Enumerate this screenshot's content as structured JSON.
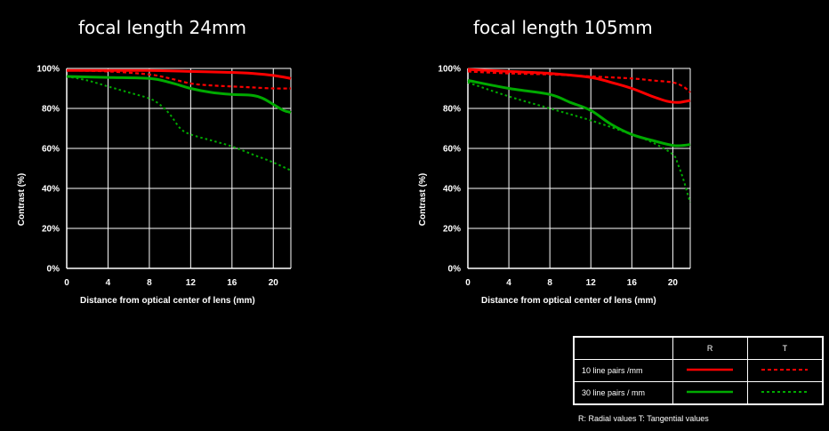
{
  "chart_data": [
    {
      "type": "line",
      "title": "focal length 24mm",
      "xlabel": "Distance from optical center of lens (mm)",
      "ylabel": "Contrast  (%)",
      "xlim": [
        0,
        21.7
      ],
      "ylim": [
        0,
        100
      ],
      "xticks": [
        "0",
        "4",
        "8",
        "12",
        "16",
        "20"
      ],
      "xtick_values": [
        0,
        4,
        8,
        12,
        16,
        20
      ],
      "yticks": [
        "0%",
        "20%",
        "40%",
        "60%",
        "80%",
        "100%"
      ],
      "ytick_values": [
        0,
        20,
        40,
        60,
        80,
        100
      ],
      "grid": true,
      "series": [
        {
          "key": "10R",
          "color": "#ff0000",
          "style": "solid",
          "x": [
            0,
            4,
            8,
            12,
            16,
            18,
            20,
            21.7
          ],
          "y": [
            99,
            99,
            99,
            98.5,
            98,
            97.5,
            96.5,
            95
          ]
        },
        {
          "key": "10T",
          "color": "#ff0000",
          "style": "dashed",
          "x": [
            0,
            4,
            8,
            10,
            12,
            14,
            16,
            18,
            20,
            21.7
          ],
          "y": [
            99,
            98.5,
            97,
            95,
            92.5,
            91.5,
            91,
            90.5,
            90,
            90
          ]
        },
        {
          "key": "30R",
          "color": "#00aa00",
          "style": "solid",
          "x": [
            0,
            4,
            8,
            10,
            12,
            14,
            16,
            18,
            19,
            20,
            21,
            21.7
          ],
          "y": [
            96,
            95.5,
            95,
            93,
            90,
            88,
            87,
            86.5,
            85,
            82,
            79,
            78
          ]
        },
        {
          "key": "30T",
          "color": "#00aa00",
          "style": "dotted",
          "x": [
            0,
            2,
            4,
            6,
            8,
            9,
            10,
            11,
            12,
            14,
            16,
            18,
            20,
            21.7
          ],
          "y": [
            96,
            94,
            91,
            88,
            85,
            82,
            77,
            70,
            67,
            64,
            61,
            57,
            53,
            49
          ]
        }
      ]
    },
    {
      "type": "line",
      "title": "focal length 105mm",
      "xlabel": "Distance from optical center of lens (mm)",
      "ylabel": "Contrast  (%)",
      "xlim": [
        0,
        21.7
      ],
      "ylim": [
        0,
        100
      ],
      "xticks": [
        "0",
        "4",
        "8",
        "12",
        "16",
        "20"
      ],
      "xtick_values": [
        0,
        4,
        8,
        12,
        16,
        20
      ],
      "yticks": [
        "0%",
        "20%",
        "40%",
        "60%",
        "80%",
        "100%"
      ],
      "ytick_values": [
        0,
        20,
        40,
        60,
        80,
        100
      ],
      "grid": true,
      "series": [
        {
          "key": "10R",
          "color": "#ff0000",
          "style": "solid",
          "x": [
            0,
            4,
            8,
            12,
            14,
            16,
            18,
            19.5,
            20.5,
            21.2,
            21.7
          ],
          "y": [
            99.5,
            98.5,
            97.5,
            95.5,
            93,
            90,
            86,
            83.5,
            83,
            83.5,
            84
          ]
        },
        {
          "key": "10T",
          "color": "#ff0000",
          "style": "dashed",
          "x": [
            0,
            4,
            8,
            12,
            16,
            18,
            20,
            21,
            21.7
          ],
          "y": [
            98.5,
            97.5,
            97,
            96,
            95,
            94,
            93,
            91,
            88
          ]
        },
        {
          "key": "30R",
          "color": "#00aa00",
          "style": "solid",
          "x": [
            0,
            4,
            8,
            10,
            12,
            14,
            16,
            18,
            20,
            21,
            21.7
          ],
          "y": [
            94,
            90,
            87,
            83,
            79,
            72,
            67,
            64,
            61.5,
            61.5,
            62
          ]
        },
        {
          "key": "30T",
          "color": "#00aa00",
          "style": "dotted",
          "x": [
            0,
            4,
            8,
            12,
            16,
            18,
            20,
            20.5,
            21,
            21.4,
            21.7
          ],
          "y": [
            93,
            86,
            80,
            74,
            67,
            63,
            57,
            52,
            45,
            38,
            33
          ]
        }
      ]
    }
  ],
  "legend": {
    "col_r": "R",
    "col_t": "T",
    "row_10": "10 line pairs /mm",
    "row_30": "30 line pairs / mm",
    "color_10": "#ff0000",
    "color_30": "#00aa00"
  },
  "note": "R: Radial values T: Tangential values"
}
